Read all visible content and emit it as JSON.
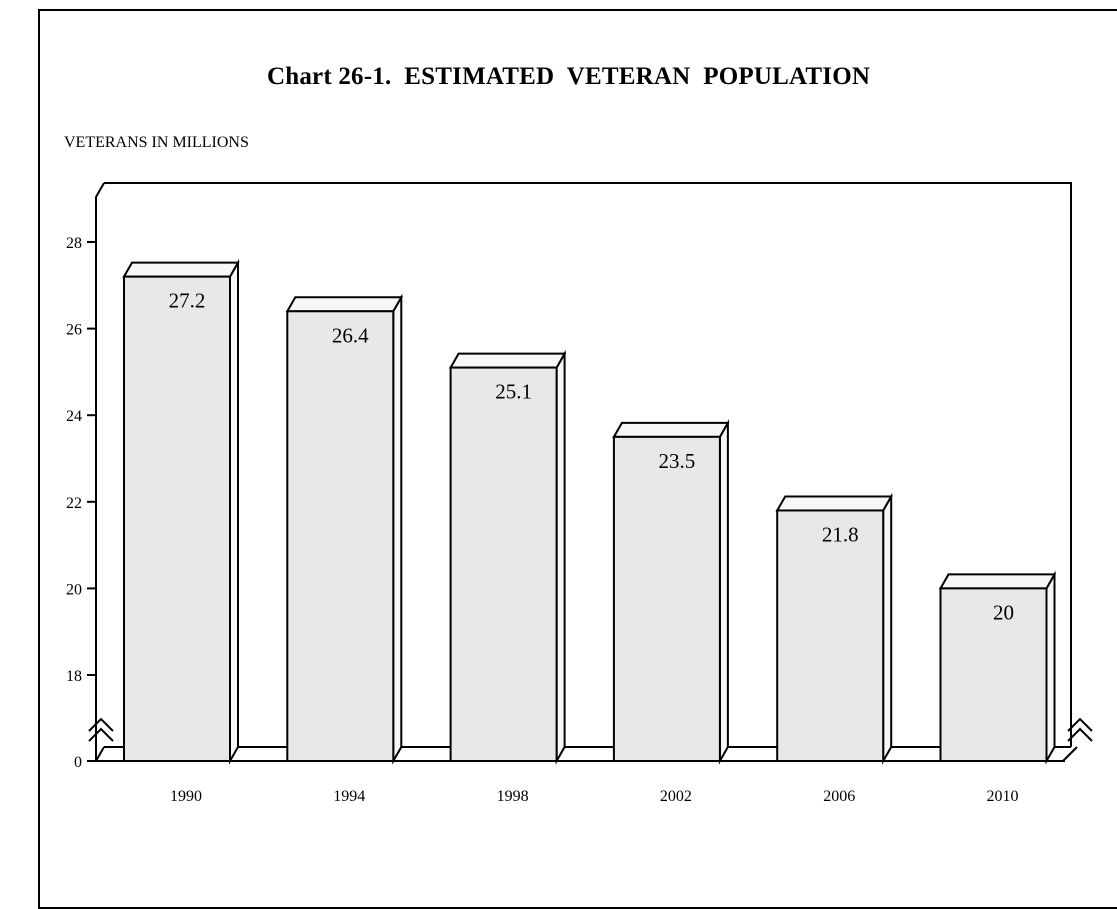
{
  "chart_data": {
    "type": "bar",
    "title": "Chart 26-1.  ESTIMATED  VETERAN  POPULATION",
    "ylabel": "VETERANS IN MILLIONS",
    "xlabel": "",
    "categories": [
      "1990",
      "1994",
      "1998",
      "2002",
      "2006",
      "2010"
    ],
    "values": [
      27.2,
      26.4,
      25.1,
      23.5,
      21.8,
      20
    ],
    "value_labels": [
      "27.2",
      "26.4",
      "25.1",
      "23.5",
      "21.8",
      "20"
    ],
    "y_ticks": [
      0,
      18,
      20,
      22,
      24,
      26,
      28
    ],
    "y_tick_labels": [
      "0",
      "18",
      "20",
      "22",
      "24",
      "26",
      "28"
    ],
    "ylim": [
      0,
      29.4
    ],
    "axis_break": "between 0 and 18",
    "grid": false,
    "bar_style": "3d",
    "bar_color": "#e8e8e8"
  }
}
